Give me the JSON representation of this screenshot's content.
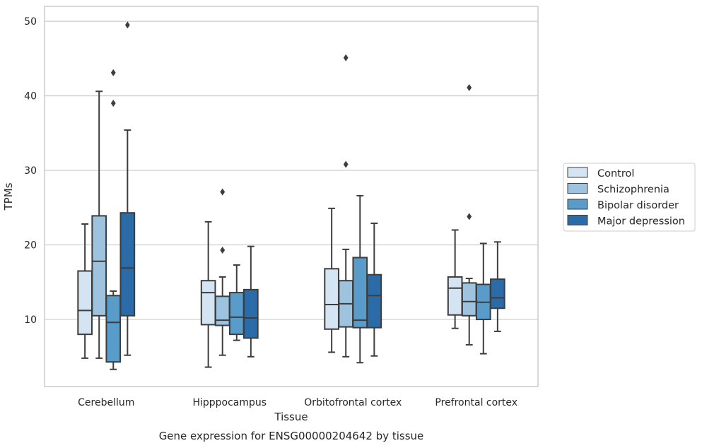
{
  "caption": "Gene expression for ENSG00000204642 by tissue",
  "chart_data": {
    "type": "box",
    "xlabel": "Tissue",
    "ylabel": "TPMs",
    "ylim": [
      1,
      52
    ],
    "yticks": [
      10,
      20,
      30,
      40,
      50
    ],
    "grid": "horizontal",
    "legend_position": "right",
    "categories": [
      "Cerebellum",
      "Hipppocampus",
      "Orbitofrontal cortex",
      "Prefrontal cortex"
    ],
    "series": [
      {
        "name": "Control",
        "color": "#d4e4f2",
        "boxes": [
          {
            "whisker_low": 4.8,
            "q1": 8.0,
            "median": 11.2,
            "q3": 16.5,
            "whisker_high": 22.8,
            "outliers": []
          },
          {
            "whisker_low": 3.6,
            "q1": 9.3,
            "median": 13.6,
            "q3": 15.2,
            "whisker_high": 23.1,
            "outliers": []
          },
          {
            "whisker_low": 5.6,
            "q1": 8.7,
            "median": 12.0,
            "q3": 16.8,
            "whisker_high": 24.9,
            "outliers": []
          },
          {
            "whisker_low": 8.8,
            "q1": 10.6,
            "median": 14.2,
            "q3": 15.7,
            "whisker_high": 22.0,
            "outliers": []
          }
        ]
      },
      {
        "name": "Schizophrenia",
        "color": "#9dc3df",
        "boxes": [
          {
            "whisker_low": 4.8,
            "q1": 10.5,
            "median": 17.8,
            "q3": 23.9,
            "whisker_high": 40.6,
            "outliers": []
          },
          {
            "whisker_low": 5.2,
            "q1": 9.2,
            "median": 9.9,
            "q3": 13.1,
            "whisker_high": 15.7,
            "outliers": [
              19.3,
              27.1
            ]
          },
          {
            "whisker_low": 5.0,
            "q1": 9.0,
            "median": 12.1,
            "q3": 15.2,
            "whisker_high": 19.4,
            "outliers": [
              30.8,
              45.1
            ]
          },
          {
            "whisker_low": 6.6,
            "q1": 10.5,
            "median": 12.4,
            "q3": 14.9,
            "whisker_high": 15.5,
            "outliers": [
              23.8,
              41.1
            ]
          }
        ]
      },
      {
        "name": "Bipolar disorder",
        "color": "#5a9cc9",
        "boxes": [
          {
            "whisker_low": 3.3,
            "q1": 4.3,
            "median": 9.6,
            "q3": 13.2,
            "whisker_high": 13.8,
            "outliers": [
              39.0,
              43.1
            ]
          },
          {
            "whisker_low": 7.2,
            "q1": 8.0,
            "median": 10.3,
            "q3": 13.6,
            "whisker_high": 17.3,
            "outliers": []
          },
          {
            "whisker_low": 4.2,
            "q1": 8.9,
            "median": 9.9,
            "q3": 18.3,
            "whisker_high": 26.6,
            "outliers": []
          },
          {
            "whisker_low": 5.4,
            "q1": 10.0,
            "median": 12.3,
            "q3": 14.7,
            "whisker_high": 20.2,
            "outliers": []
          }
        ]
      },
      {
        "name": "Major depression",
        "color": "#2b6ba8",
        "boxes": [
          {
            "whisker_low": 5.2,
            "q1": 10.5,
            "median": 16.9,
            "q3": 24.3,
            "whisker_high": 35.4,
            "outliers": [
              49.5
            ]
          },
          {
            "whisker_low": 5.0,
            "q1": 7.5,
            "median": 10.2,
            "q3": 14.0,
            "whisker_high": 19.8,
            "outliers": []
          },
          {
            "whisker_low": 5.1,
            "q1": 8.9,
            "median": 13.2,
            "q3": 16.0,
            "whisker_high": 22.9,
            "outliers": []
          },
          {
            "whisker_low": 8.4,
            "q1": 11.5,
            "median": 12.9,
            "q3": 15.4,
            "whisker_high": 20.4,
            "outliers": []
          }
        ]
      }
    ]
  }
}
